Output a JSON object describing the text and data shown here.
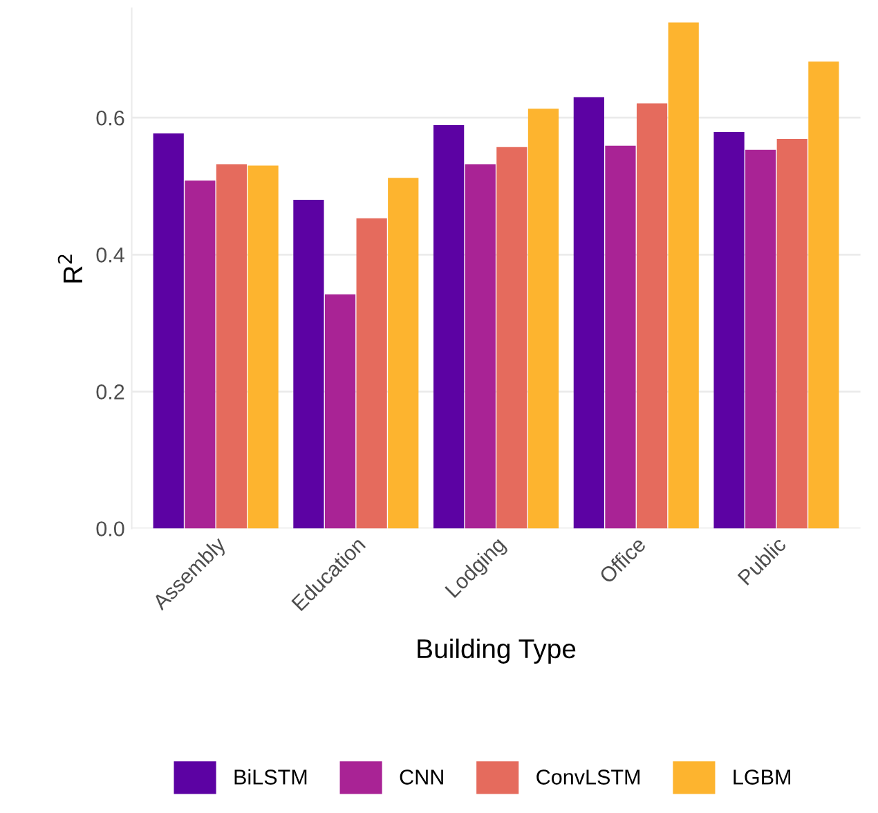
{
  "chart_data": {
    "type": "bar",
    "xlabel": "Building Type",
    "ylabel": "R$^{2}$",
    "categories": [
      "Assembly",
      "Education",
      "Lodging",
      "Office",
      "Public"
    ],
    "series": [
      {
        "name": "BiLSTM",
        "color": "#5c02a3",
        "values": [
          0.577,
          0.48,
          0.589,
          0.63,
          0.579
        ]
      },
      {
        "name": "CNN",
        "color": "#a92395",
        "values": [
          0.508,
          0.342,
          0.532,
          0.559,
          0.553
        ]
      },
      {
        "name": "ConvLSTM",
        "color": "#e56b5d",
        "values": [
          0.532,
          0.453,
          0.557,
          0.621,
          0.569
        ]
      },
      {
        "name": "LGBM",
        "color": "#fdb42f",
        "values": [
          0.53,
          0.512,
          0.613,
          0.739,
          0.682
        ]
      }
    ],
    "ylim": [
      0,
      0.76
    ],
    "yticks": [
      {
        "value": 0,
        "label": "0.0"
      },
      {
        "value": 0.2,
        "label": "0.2"
      },
      {
        "value": 0.4,
        "label": "0.4"
      },
      {
        "value": 0.6,
        "label": "0.6"
      }
    ],
    "grid": "y",
    "legend": "bottom"
  }
}
